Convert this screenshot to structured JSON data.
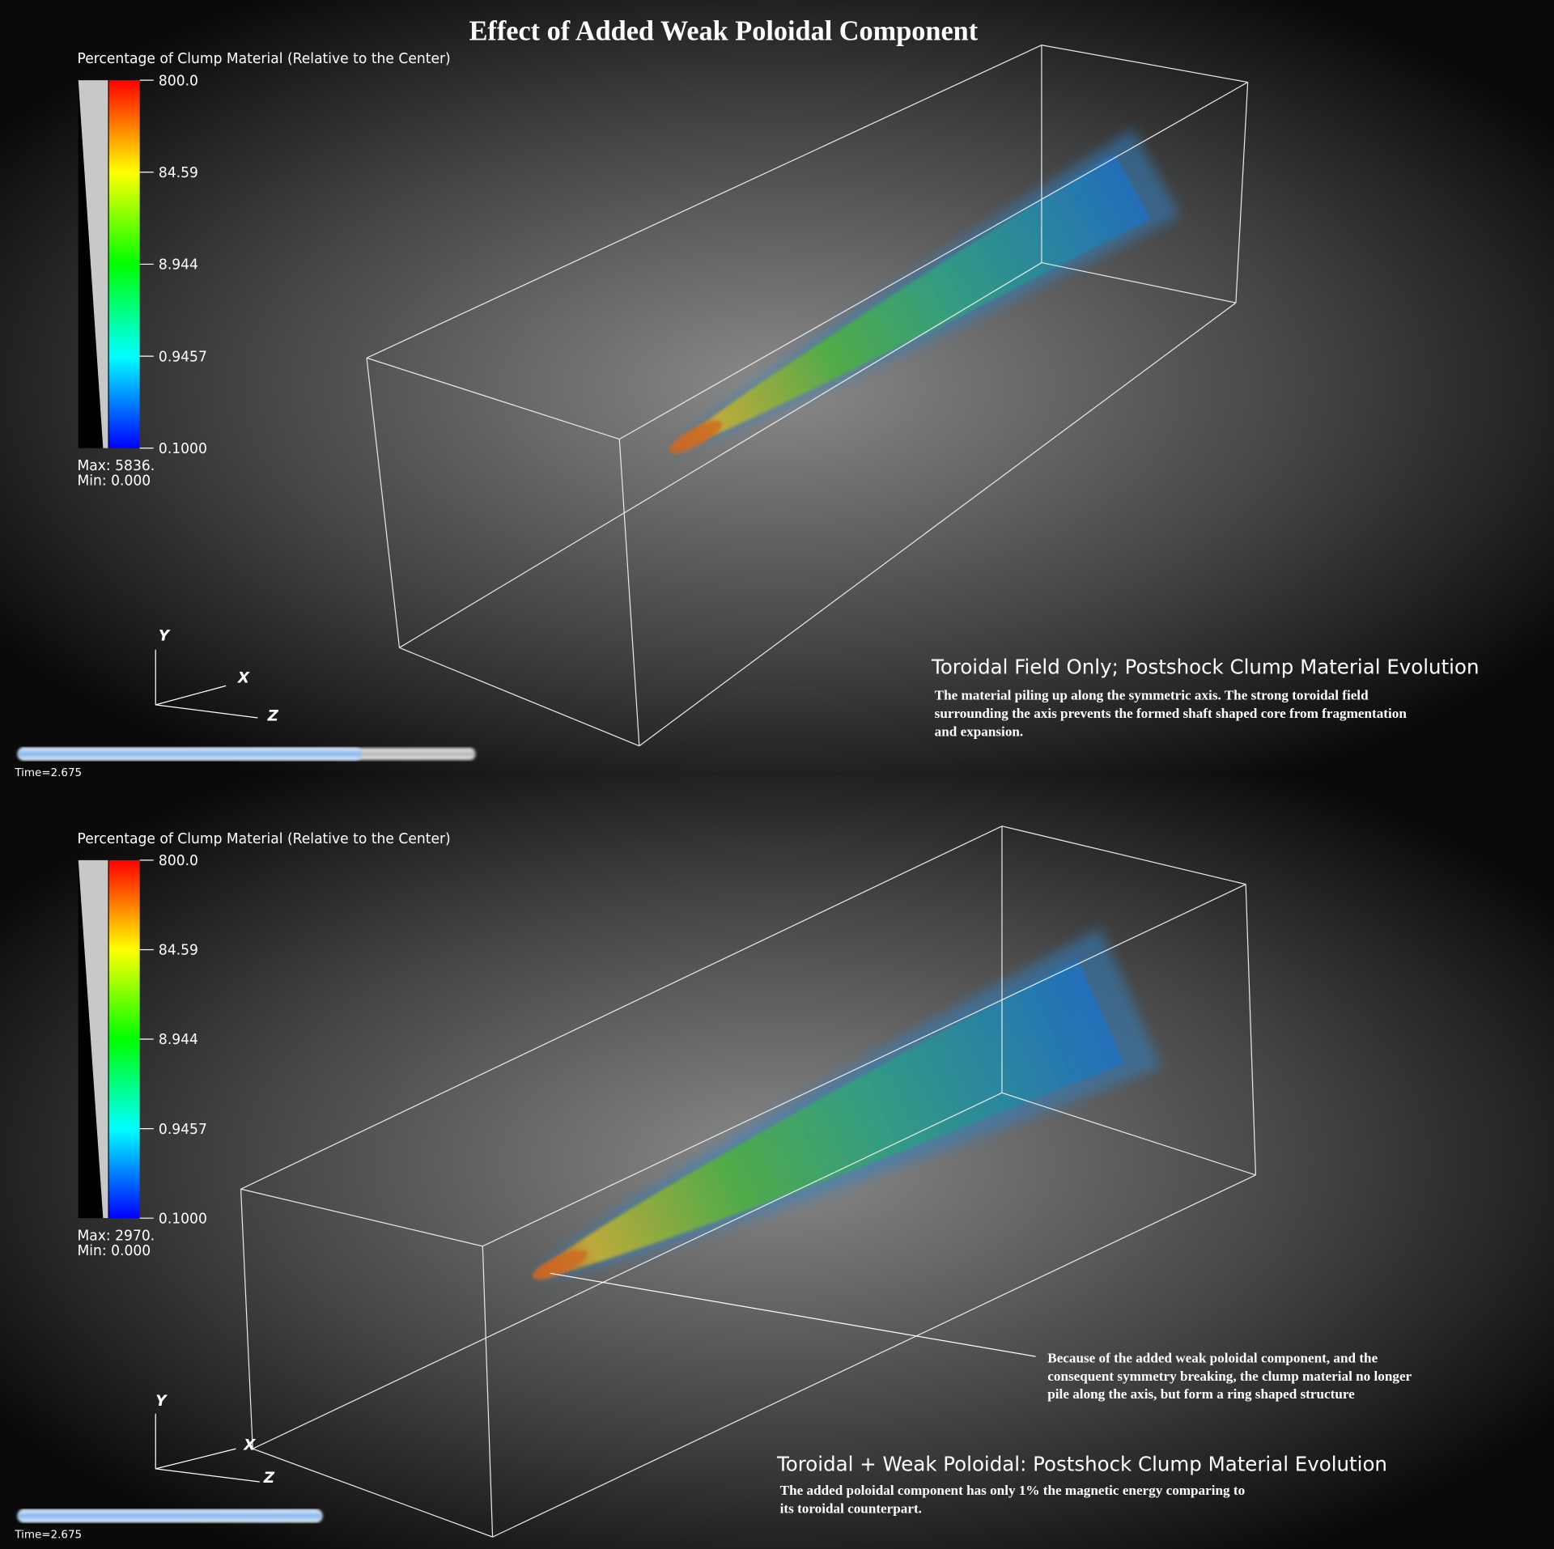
{
  "title": "Effect of Added Weak Poloidal Component",
  "panels": [
    {
      "legend": {
        "title": "Percentage of Clump Material (Relative to the Center)",
        "ticks": [
          "800.0",
          "84.59",
          "8.944",
          "0.9457",
          "0.1000"
        ],
        "max": "Max:  5836.",
        "min": "Min:  0.000"
      },
      "axes": [
        "Y",
        "X",
        "Z"
      ],
      "time": "Time=2.675",
      "heading": "Toroidal Field Only; Postshock Clump Material Evolution",
      "description": [
        "The material piling up along the symmetric axis. The strong toroidal field",
        "surrounding the axis prevents the formed shaft shaped core from fragmentation",
        "and expansion."
      ]
    },
    {
      "legend": {
        "title": "Percentage of Clump Material (Relative to the Center)",
        "ticks": [
          "800.0",
          "84.59",
          "8.944",
          "0.9457",
          "0.1000"
        ],
        "max": "Max:  2970.",
        "min": "Min:  0.000"
      },
      "axes": [
        "Y",
        "X",
        "Z"
      ],
      "time": "Time=2.675",
      "heading": "Toroidal + Weak Poloidal: Postshock Clump Material Evolution",
      "description": [
        "The added poloidal component has only 1% the magnetic energy comparing to",
        "its toroidal counterpart."
      ],
      "annotation": [
        "Because of the added weak poloidal component, and the",
        "consequent symmetry breaking, the clump material no  longer",
        "pile along the axis, but form a ring shaped structure"
      ]
    }
  ]
}
